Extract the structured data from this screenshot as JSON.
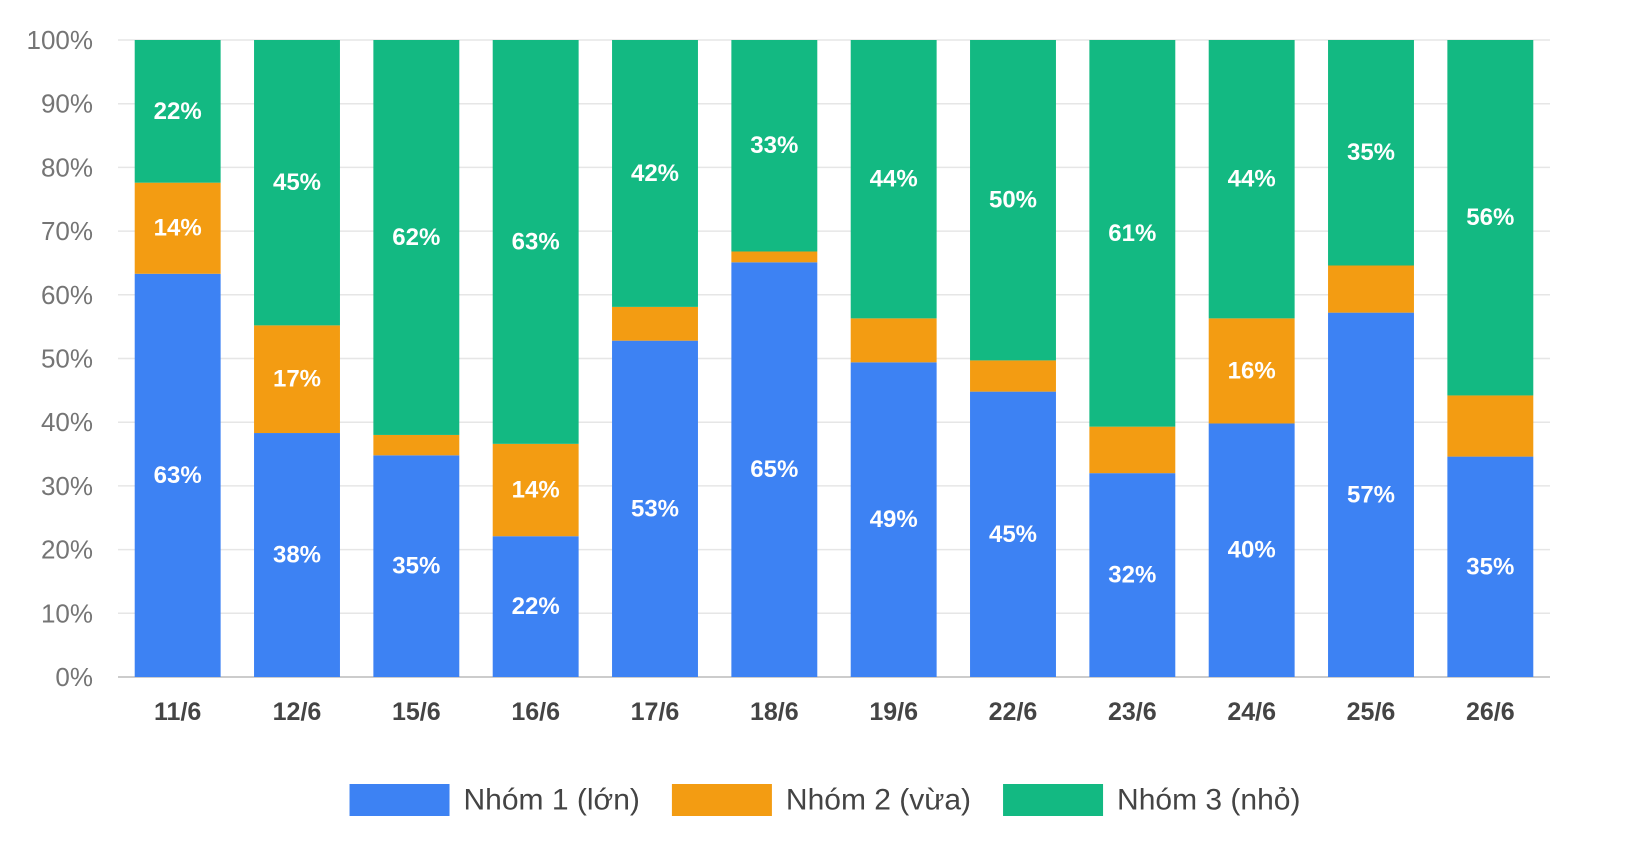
{
  "chart_data": {
    "type": "bar",
    "stacked": true,
    "categories": [
      "11/6",
      "12/6",
      "15/6",
      "16/6",
      "17/6",
      "18/6",
      "19/6",
      "22/6",
      "23/6",
      "24/6",
      "25/6",
      "26/6"
    ],
    "series": [
      {
        "name": "Nhóm 1 (lớn)",
        "color": "#3d82f3",
        "values": [
          63.3,
          38.3,
          34.8,
          22.1,
          52.8,
          65.1,
          49.4,
          44.8,
          32.0,
          39.8,
          57.2,
          34.6
        ],
        "labels": [
          "63%",
          "38%",
          "35%",
          "22%",
          "53%",
          "65%",
          "49%",
          "45%",
          "32%",
          "40%",
          "57%",
          "35%"
        ]
      },
      {
        "name": "Nhóm 2 (vừa)",
        "color": "#f39c12",
        "values": [
          14.3,
          16.9,
          3.2,
          14.5,
          5.3,
          1.7,
          6.9,
          4.9,
          7.3,
          16.5,
          7.4,
          9.6
        ],
        "labels": [
          "14%",
          "17%",
          "",
          "14%",
          "",
          "",
          "",
          "",
          "",
          "16%",
          "",
          ""
        ]
      },
      {
        "name": "Nhóm 3 (nhỏ)",
        "color": "#13b982",
        "values": [
          22.4,
          44.8,
          62.0,
          63.4,
          41.9,
          33.2,
          43.7,
          50.3,
          60.7,
          43.7,
          35.4,
          55.8
        ],
        "labels": [
          "22%",
          "45%",
          "62%",
          "63%",
          "42%",
          "33%",
          "44%",
          "50%",
          "61%",
          "44%",
          "35%",
          "56%"
        ]
      }
    ],
    "yticks": [
      "0%",
      "10%",
      "20%",
      "30%",
      "40%",
      "50%",
      "60%",
      "70%",
      "80%",
      "90%",
      "100%"
    ],
    "ylim": [
      0,
      100
    ],
    "grid": true,
    "legend": "bottom"
  }
}
